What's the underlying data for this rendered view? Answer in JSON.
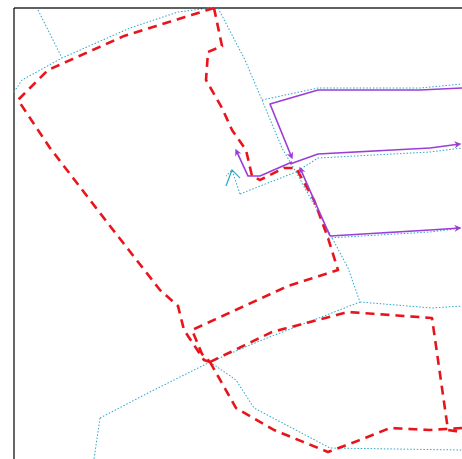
{
  "map": {
    "colors": {
      "background": "#ffffff",
      "frame": "#000000",
      "road": "#2aa7cc",
      "boundary": "#e8141b",
      "route": "#9b3dd6"
    },
    "layers": [
      "frame",
      "road-network",
      "dashed-boundary",
      "route-arrows"
    ]
  }
}
